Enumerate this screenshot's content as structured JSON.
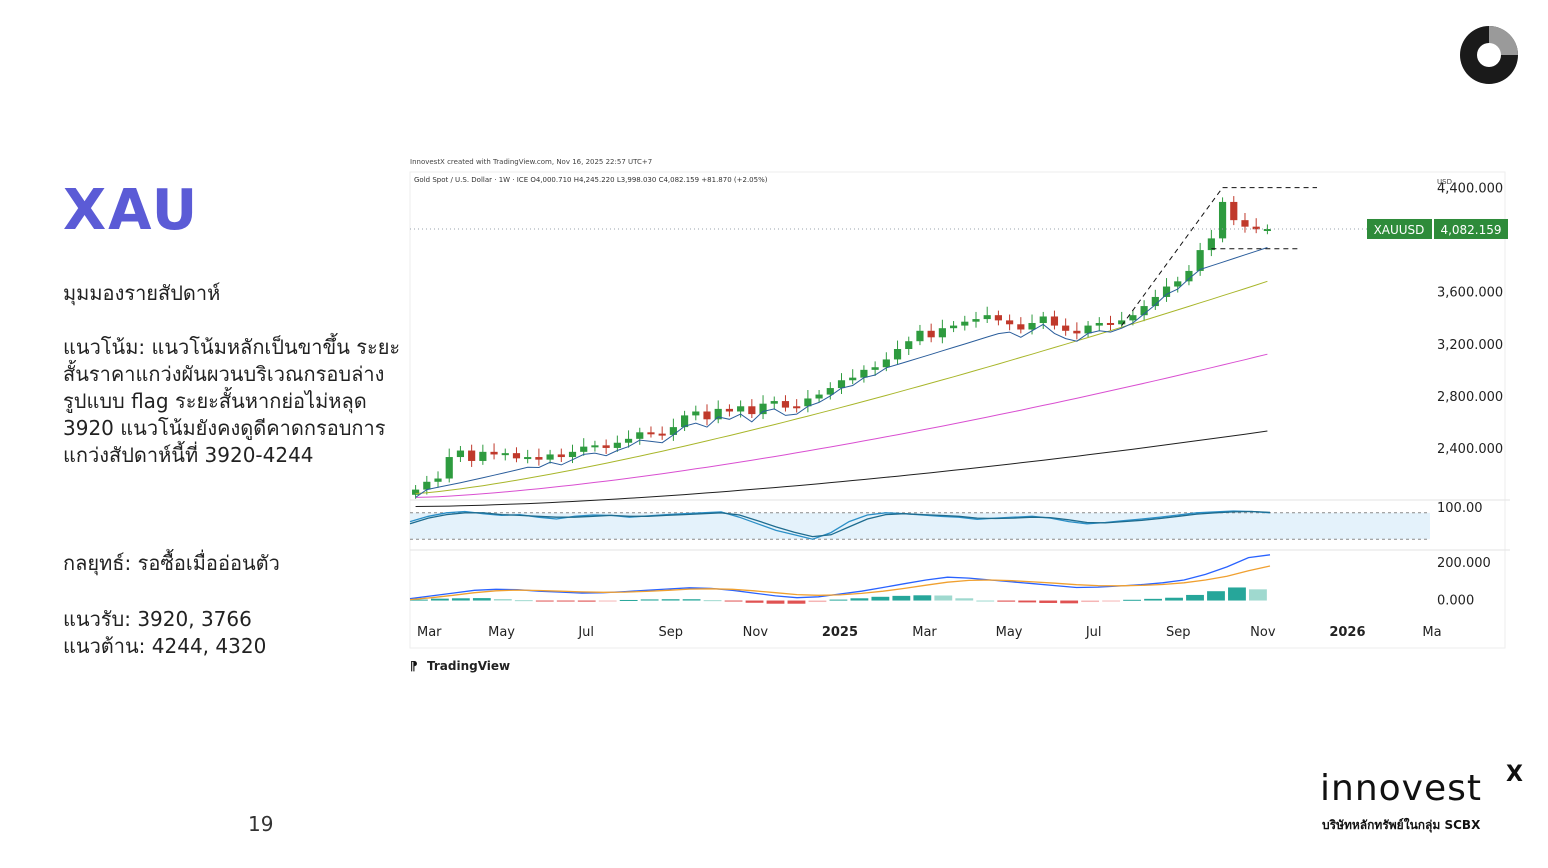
{
  "slide": {
    "title": "XAU",
    "subtitle": "มุมมองรายสัปดาห์",
    "trend_text": "แนวโน้ม: แนวโน้มหลักเป็นขาขึ้น ระยะสั้นราคาแกว่งผันผวนบริเวณกรอบล่างรูปแบบ flag ระยะสั้นหากย่อไม่หลุด 3920 แนวโน้มยังคงดูดีคาดกรอบการแกว่งสัปดาห์นี้ที่ 3920-4244",
    "strategy_text": "กลยุทธ์: รอซื้อเมื่ออ่อนตัว",
    "support_text": "แนวรับ: 3920, 3766",
    "resistance_text": "แนวต้าน: 4244, 4320",
    "page_number": "19"
  },
  "brand": {
    "name": "innovest",
    "superscript": "X",
    "tagline": "บริษัทหลักทรัพย์ในกลุ่ม SCBX",
    "mark_icon": "innovestx-ring-logo-icon"
  },
  "chart_data": {
    "type": "candlestick",
    "watermark": "InnovestX created with TradingView.com, Nov 16, 2025 22:57 UTC+7",
    "header": "Gold Spot / U.S. Dollar · 1W · ICE  O4,000.710  H4,245.220  L3,998.030  C4,082.159  +81.870 (+2.05%)",
    "currency_label": "USD",
    "symbol": "XAUUSD",
    "last_price": 4082.159,
    "last_price_label": "4,082.159",
    "platform": "TradingView",
    "y_range": [
      2000,
      4520
    ],
    "y_ticks": [
      {
        "value": 4400,
        "label": "4,400.000"
      },
      {
        "value": 3600,
        "label": "3,600.000"
      },
      {
        "value": 3200,
        "label": "3,200.000"
      },
      {
        "value": 2800,
        "label": "2,800.000"
      },
      {
        "value": 2400,
        "label": "2,400.000"
      }
    ],
    "x_range": [
      0,
      100
    ],
    "x_ticks": [
      {
        "label": "Mar",
        "bold": false
      },
      {
        "label": "May",
        "bold": false
      },
      {
        "label": "Jul",
        "bold": false
      },
      {
        "label": "Sep",
        "bold": false
      },
      {
        "label": "Nov",
        "bold": false
      },
      {
        "label": "2025",
        "bold": true
      },
      {
        "label": "Mar",
        "bold": false
      },
      {
        "label": "May",
        "bold": false
      },
      {
        "label": "Jul",
        "bold": false
      },
      {
        "label": "Sep",
        "bold": false
      },
      {
        "label": "Nov",
        "bold": false
      },
      {
        "label": "2026",
        "bold": true
      },
      {
        "label": "Ma",
        "bold": false
      }
    ],
    "close_series": [
      2080,
      2140,
      2165,
      2330,
      2380,
      2300,
      2370,
      2350,
      2360,
      2320,
      2330,
      2310,
      2350,
      2330,
      2370,
      2410,
      2420,
      2400,
      2440,
      2470,
      2520,
      2510,
      2500,
      2560,
      2650,
      2680,
      2620,
      2700,
      2680,
      2720,
      2660,
      2740,
      2760,
      2710,
      2720,
      2780,
      2810,
      2860,
      2920,
      2940,
      3000,
      3020,
      3080,
      3160,
      3220,
      3300,
      3250,
      3320,
      3340,
      3370,
      3390,
      3420,
      3380,
      3350,
      3310,
      3360,
      3410,
      3340,
      3300,
      3280,
      3340,
      3360,
      3350,
      3380,
      3420,
      3490,
      3560,
      3640,
      3680,
      3760,
      3920,
      4010,
      4290,
      4150,
      4100,
      4080,
      4082
    ],
    "moving_averages": [
      {
        "color": "#1f1f1f",
        "start": 1950,
        "end": 2530
      },
      {
        "color": "#d94fd1",
        "start": 2020,
        "end": 3120
      },
      {
        "color": "#a8b62a",
        "start": 2050,
        "end": 3680
      },
      {
        "color": "#2a5d9b",
        "start": 2070,
        "end": 3940
      }
    ],
    "candles_marked_bear": [
      5,
      7,
      9,
      11,
      13,
      17,
      21,
      22,
      26,
      28,
      30,
      33,
      34,
      46,
      52,
      53,
      54,
      57,
      58,
      59,
      62,
      73,
      74,
      75
    ],
    "flag_lines": {
      "top": 4400,
      "bottom": 3930
    },
    "oscillator": {
      "ticks": [
        {
          "value": 100,
          "label": "100.00"
        }
      ],
      "range": [
        0,
        100
      ],
      "upper_band": 80,
      "lower_band": 20,
      "series_k": [
        60,
        72,
        80,
        83,
        78,
        74,
        76,
        70,
        66,
        72,
        75,
        74,
        70,
        73,
        76,
        78,
        80,
        82,
        70,
        55,
        40,
        30,
        20,
        35,
        60,
        75,
        80,
        78,
        75,
        72,
        70,
        65,
        68,
        70,
        72,
        68,
        60,
        55,
        58,
        62,
        66,
        70,
        75,
        80,
        82,
        84,
        83,
        80
      ],
      "series_d": [
        55,
        68,
        76,
        80,
        80,
        76,
        74,
        72,
        70,
        70,
        72,
        74,
        72,
        72,
        74,
        76,
        78,
        80,
        75,
        62,
        48,
        36,
        26,
        30,
        48,
        66,
        76,
        78,
        76,
        74,
        72,
        68,
        67,
        68,
        70,
        69,
        64,
        58,
        57,
        60,
        63,
        67,
        72,
        77,
        80,
        82,
        83,
        81
      ]
    },
    "macd": {
      "ticks": [
        {
          "value": 200,
          "label": "200.000"
        },
        {
          "value": 0,
          "label": "0.000"
        }
      ],
      "range": [
        -40,
        260
      ],
      "macd_line": [
        10,
        25,
        40,
        55,
        60,
        58,
        50,
        45,
        40,
        42,
        48,
        55,
        62,
        68,
        65,
        55,
        40,
        25,
        15,
        20,
        35,
        50,
        70,
        90,
        110,
        125,
        120,
        110,
        100,
        90,
        80,
        70,
        72,
        78,
        85,
        95,
        110,
        140,
        180,
        230,
        245
      ],
      "signal_line": [
        5,
        15,
        28,
        42,
        52,
        56,
        54,
        50,
        46,
        44,
        45,
        49,
        55,
        61,
        63,
        60,
        52,
        42,
        32,
        28,
        30,
        38,
        50,
        65,
        82,
        98,
        108,
        110,
        106,
        100,
        93,
        85,
        80,
        79,
        81,
        86,
        95,
        110,
        130,
        160,
        185
      ],
      "histogram": [
        5,
        10,
        12,
        13,
        8,
        2,
        -4,
        -5,
        -6,
        -2,
        3,
        6,
        7,
        7,
        2,
        -5,
        -12,
        -17,
        -17,
        -8,
        5,
        12,
        20,
        25,
        28,
        27,
        12,
        0,
        -6,
        -10,
        -13,
        -15,
        -8,
        -1,
        4,
        9,
        15,
        30,
        50,
        70,
        60
      ]
    }
  }
}
